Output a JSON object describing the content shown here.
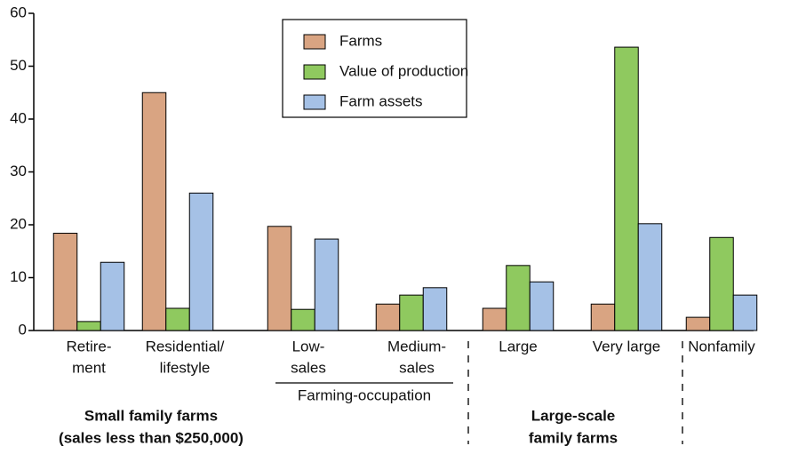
{
  "chart_data": {
    "type": "bar",
    "categories": [
      [
        "Retire-",
        "ment"
      ],
      [
        "Residential/",
        "lifestyle"
      ],
      [
        "Low-",
        "sales"
      ],
      [
        "Medium-",
        "sales"
      ],
      [
        "Large"
      ],
      [
        "Very large"
      ],
      [
        "Nonfamily"
      ]
    ],
    "series": [
      {
        "name": "Farms",
        "color": "#d9a482",
        "values": [
          18.4,
          45,
          19.7,
          5.0,
          4.2,
          5.0,
          2.5
        ]
      },
      {
        "name": "Value of production",
        "color": "#8fc95f",
        "values": [
          1.7,
          4.2,
          4.0,
          6.7,
          12.3,
          53.6,
          17.6
        ]
      },
      {
        "name": "Farm assets",
        "color": "#a5c1e6",
        "values": [
          12.9,
          26,
          17.3,
          8.1,
          9.2,
          20.2,
          6.7
        ]
      }
    ],
    "annotations": {
      "farming_occupation": "Farming-occupation",
      "small_family": [
        "Small family farms",
        "(sales less than $250,000)"
      ],
      "large_scale": [
        "Large-scale",
        "family farms"
      ]
    },
    "ylim": [
      0,
      60
    ],
    "yticks": [
      0,
      10,
      20,
      30,
      40,
      50,
      60
    ],
    "legend": "top"
  }
}
